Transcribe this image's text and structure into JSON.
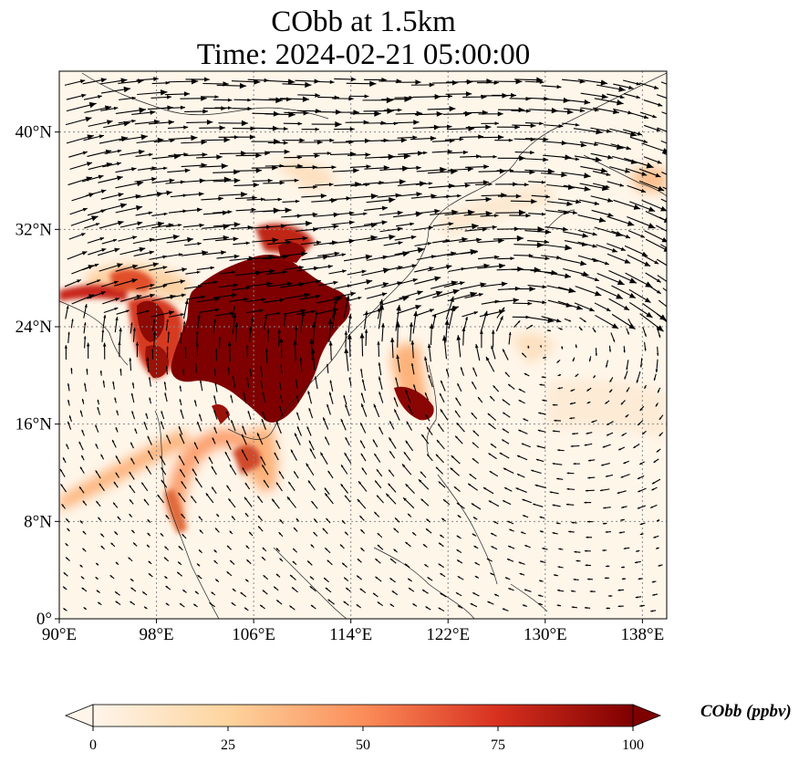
{
  "title_line1": "CObb at 1.5km",
  "title_line2": "Time: 2024-02-21 05:00:00",
  "map": {
    "lon_range": [
      90,
      140
    ],
    "lat_range": [
      0,
      45
    ],
    "lon_ticks": [
      "90°E",
      "98°E",
      "106°E",
      "114°E",
      "122°E",
      "130°E",
      "138°E"
    ],
    "lat_ticks": [
      "0°",
      "8°N",
      "16°N",
      "24°N",
      "32°N",
      "40°N"
    ],
    "lon_tick_values": [
      90,
      98,
      106,
      114,
      122,
      130,
      138
    ],
    "lat_tick_values": [
      0,
      8,
      16,
      24,
      32,
      40
    ],
    "gridlines": true,
    "overlay": "wind vectors"
  },
  "colorbar": {
    "label": "CObb (ppbv)",
    "tick_values": [
      0,
      25,
      50,
      75,
      100
    ],
    "tick_labels": [
      "0",
      "25",
      "50",
      "75",
      "100"
    ],
    "range": [
      0,
      100
    ],
    "colormap": [
      "#fff5eb",
      "#fdd49e",
      "#fc8d59",
      "#d7301f",
      "#7f0000"
    ],
    "extend": "both"
  }
}
